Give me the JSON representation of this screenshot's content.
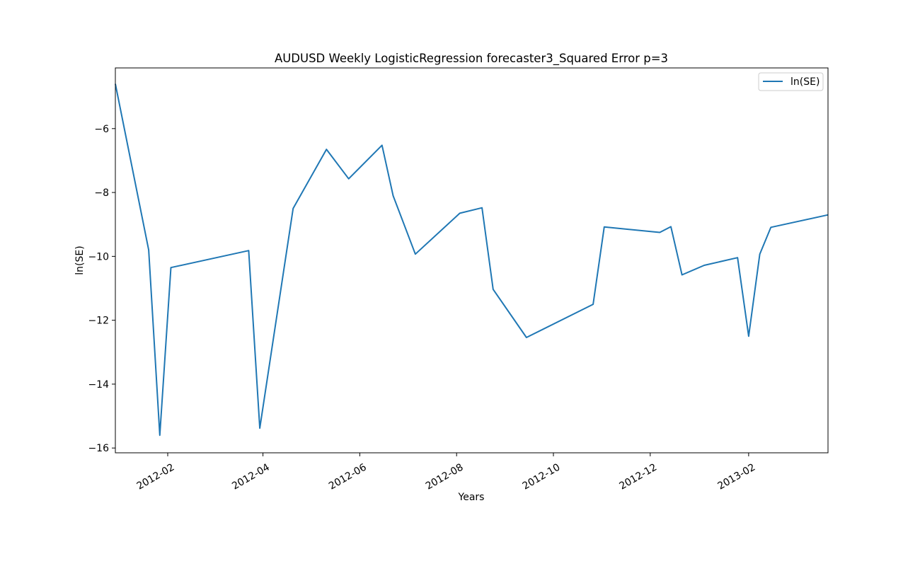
{
  "chart_data": {
    "type": "line",
    "title": "AUDUSD Weekly LogisticRegression forecaster3_Squared Error p=3",
    "xlabel": "Years",
    "ylabel": "ln(SE)",
    "x_tick_labels": [
      "2012-02",
      "2012-04",
      "2012-06",
      "2012-08",
      "2012-10",
      "2012-12",
      "2013-02"
    ],
    "y_tick_labels": [
      "−16",
      "−14",
      "−12",
      "−10",
      "−8",
      "−6"
    ],
    "xlim": [
      "2011-12-30",
      "2013-03-23"
    ],
    "ylim": [
      -16.15,
      -4.1
    ],
    "grid": false,
    "legend_position": "top-right",
    "colors": {
      "line": "#1f77b4",
      "axes": "#000000"
    },
    "series": [
      {
        "name": "ln(SE)",
        "x": [
          "2011-12-30",
          "2012-01-20",
          "2012-01-27",
          "2012-02-03",
          "2012-03-23",
          "2012-03-30",
          "2012-04-20",
          "2012-05-11",
          "2012-05-25",
          "2012-06-15",
          "2012-06-22",
          "2012-07-06",
          "2012-08-03",
          "2012-08-17",
          "2012-08-24",
          "2012-09-14",
          "2012-10-26",
          "2012-11-02",
          "2012-12-07",
          "2012-12-14",
          "2012-12-21",
          "2013-01-04",
          "2013-01-25",
          "2013-02-01",
          "2013-02-08",
          "2013-02-15",
          "2013-03-23"
        ],
        "y": [
          -4.6,
          -9.8,
          -15.6,
          -10.35,
          -9.82,
          -15.38,
          -8.5,
          -6.65,
          -7.57,
          -6.52,
          -8.1,
          -9.93,
          -8.65,
          -8.48,
          -11.03,
          -12.54,
          -11.5,
          -9.08,
          -9.25,
          -9.07,
          -10.58,
          -10.28,
          -10.04,
          -12.5,
          -9.93,
          -9.09,
          -8.7
        ]
      }
    ]
  }
}
